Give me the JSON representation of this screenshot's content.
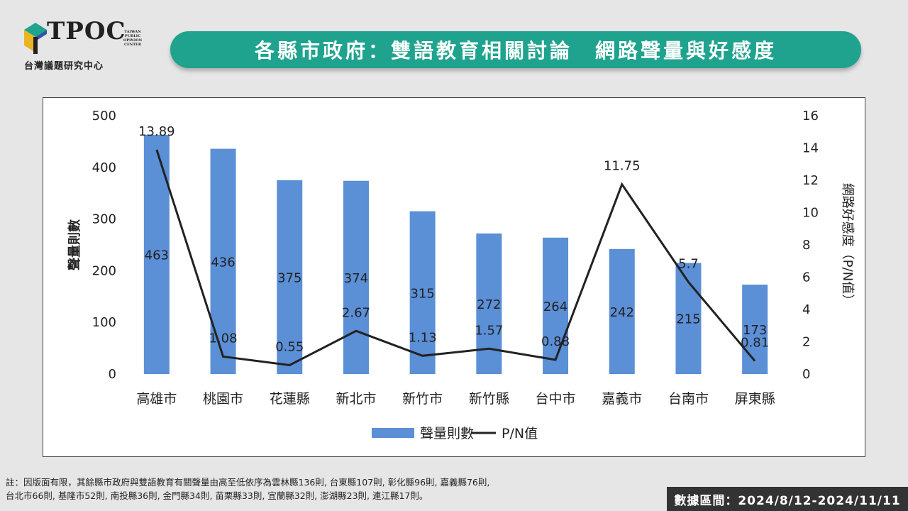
{
  "logo": {
    "name": "TPOC",
    "subtitle": "台灣議題研究中心",
    "small_lines": [
      "TAIWAN",
      "PUBLIC",
      "OPINION",
      "CENTER"
    ]
  },
  "title": "各縣市政府：雙語教育相關討論　網路聲量與好感度",
  "colors": {
    "bar": "#5b8fd6",
    "line": "#222222",
    "banner": "#1fa38e"
  },
  "chart_data": {
    "type": "bar+line",
    "categories": [
      "高雄市",
      "桃園市",
      "花蓮縣",
      "新北市",
      "新竹市",
      "新竹縣",
      "台中市",
      "嘉義市",
      "台南市",
      "屏東縣"
    ],
    "series": [
      {
        "name": "聲量則數",
        "type": "bar",
        "axis": "left",
        "values": [
          463,
          436,
          375,
          374,
          315,
          272,
          264,
          242,
          215,
          173
        ]
      },
      {
        "name": "P/N值",
        "type": "line",
        "axis": "right",
        "values": [
          13.89,
          1.08,
          0.55,
          2.67,
          1.13,
          1.57,
          0.88,
          11.75,
          5.7,
          0.81
        ]
      }
    ],
    "ylabel": "聲量則數",
    "y2label": "網路好感度（P/N值）",
    "ylim": [
      0,
      500
    ],
    "y2lim": [
      0,
      16
    ],
    "yticks": [
      0,
      100,
      200,
      300,
      400,
      500
    ],
    "y2ticks": [
      0,
      2,
      4,
      6,
      8,
      10,
      12,
      14,
      16
    ],
    "legend": "bottom",
    "grid": false
  },
  "note_lines": [
    "註：因版面有限，其餘縣市政府與雙語教育有關聲量由高至低依序為雲林縣136則, 台東縣107則, 彰化縣96則, 嘉義縣76則,",
    "台北市66則, 基隆市52則, 南投縣36則, 金門縣34則, 苗栗縣33則, 宜蘭縣32則, 澎湖縣23則, 連江縣17則。"
  ],
  "date_range": "數據區間：2024/8/12-2024/11/11"
}
